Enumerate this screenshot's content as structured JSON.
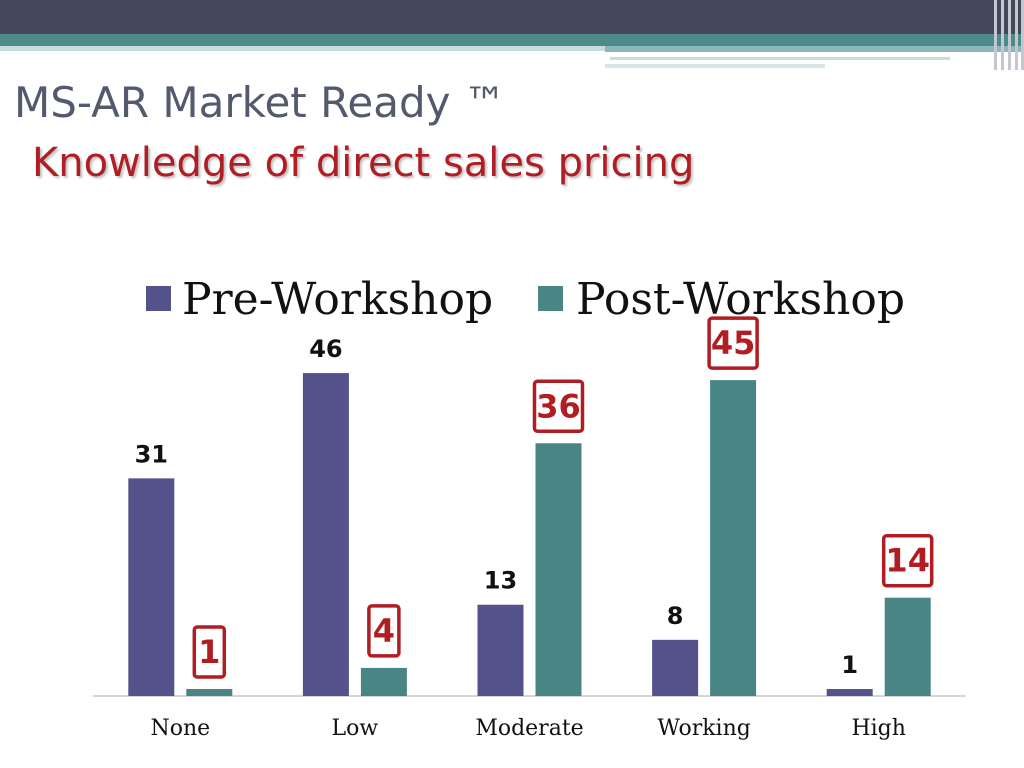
{
  "slide": {
    "title": "MS-AR Market Ready ™",
    "subtitle": "Knowledge of direct sales pricing"
  },
  "colors": {
    "pre": "#54528a",
    "post": "#4a8585",
    "highlight": "#b01e24"
  },
  "chart_data": {
    "type": "bar",
    "categories": [
      "None",
      "Low",
      "Moderate",
      "Working",
      "High"
    ],
    "series": [
      {
        "name": "Pre-Workshop",
        "values": [
          31,
          46,
          13,
          8,
          1
        ]
      },
      {
        "name": "Post-Workshop",
        "values": [
          1,
          4,
          36,
          45,
          14
        ]
      }
    ],
    "ylim": [
      0,
      50
    ],
    "grid": false,
    "legend": "top",
    "highlighted_series": "Post-Workshop"
  }
}
